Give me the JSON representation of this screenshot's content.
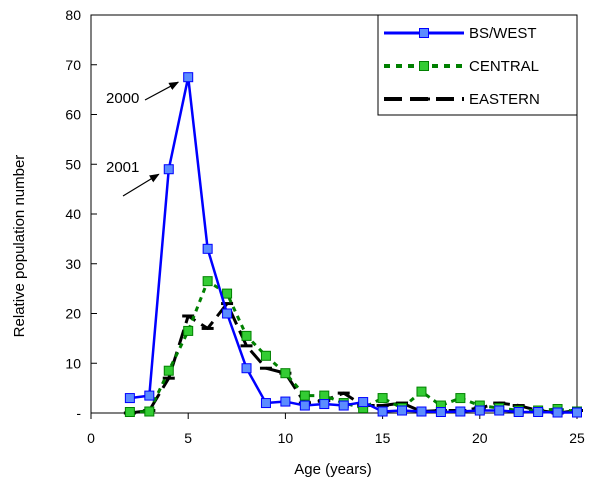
{
  "chart_data": {
    "type": "line",
    "title": "",
    "xlabel": "Age (years)",
    "ylabel": "Relative population number",
    "xlim": [
      0,
      25
    ],
    "ylim": [
      0,
      80
    ],
    "x_ticks": [
      0,
      5,
      10,
      15,
      20,
      25
    ],
    "y_ticks": [
      0,
      10,
      20,
      30,
      40,
      50,
      60,
      70,
      80
    ],
    "y_tick_labels": [
      "-",
      "10",
      "20",
      "30",
      "40",
      "50",
      "60",
      "70",
      "80"
    ],
    "grid": false,
    "legend_position": "top-right",
    "series": [
      {
        "name": "BS/WEST",
        "color": "#0000ff",
        "marker_color": "#5b8cff",
        "line_style": "solid",
        "marker": "square",
        "x": [
          2,
          3,
          4,
          5,
          6,
          7,
          8,
          9,
          10,
          11,
          12,
          13,
          14,
          15,
          16,
          17,
          18,
          19,
          20,
          21,
          22,
          23,
          24,
          25
        ],
        "values": [
          3,
          3.5,
          49,
          67.5,
          33,
          20,
          9,
          2,
          2.3,
          1.5,
          1.8,
          1.5,
          2.2,
          0.3,
          0.5,
          0.3,
          0.2,
          0.3,
          0.5,
          0.5,
          0.2,
          0.2,
          0.1,
          0.1
        ]
      },
      {
        "name": "CENTRAL",
        "color": "#008000",
        "marker_color": "#33cc33",
        "line_style": "dotted",
        "marker": "square",
        "x": [
          2,
          3,
          4,
          5,
          6,
          7,
          8,
          9,
          10,
          11,
          12,
          13,
          14,
          15,
          16,
          17,
          18,
          19,
          20,
          21,
          22,
          23,
          24,
          25
        ],
        "values": [
          0.2,
          0.3,
          8.5,
          16.5,
          26.5,
          24,
          15.5,
          11.5,
          8,
          3.5,
          3.5,
          2,
          1,
          3,
          1,
          4.3,
          1.5,
          3,
          1.5,
          1,
          0.5,
          0.5,
          0.8,
          0.3
        ]
      },
      {
        "name": "EASTERN",
        "color": "#000000",
        "marker_color": "#000000",
        "line_style": "dashed",
        "marker": "dash",
        "x": [
          2,
          3,
          4,
          5,
          6,
          7,
          8,
          9,
          10,
          11,
          12,
          13,
          14,
          15,
          16,
          17,
          18,
          19,
          20,
          21,
          22,
          23,
          24,
          25
        ],
        "values": [
          0,
          0.5,
          7,
          19.5,
          17,
          22,
          13.5,
          9,
          8,
          2,
          2.5,
          4,
          1.5,
          1.5,
          2,
          0.3,
          0.5,
          0.5,
          1,
          2,
          1.5,
          0.5,
          0,
          0.5
        ]
      }
    ],
    "annotations": [
      {
        "text": "2000",
        "points_to": {
          "x": 5,
          "y": 67.5
        }
      },
      {
        "text": "2001",
        "points_to": {
          "x": 4,
          "y": 49
        }
      }
    ]
  }
}
